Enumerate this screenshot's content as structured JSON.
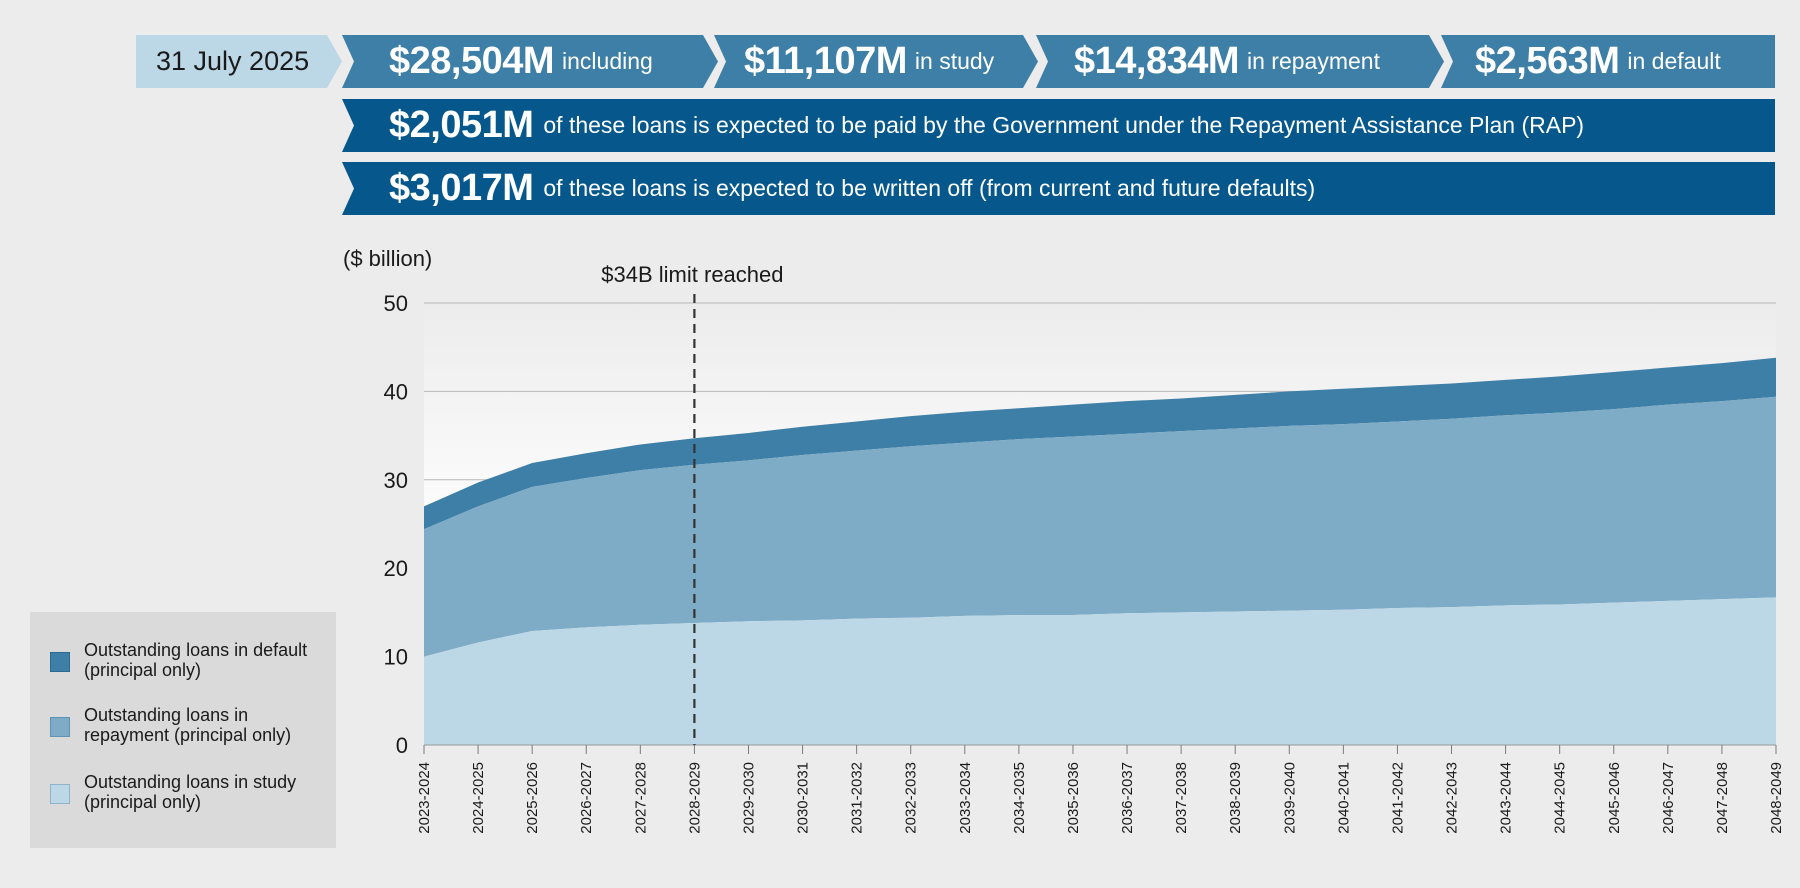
{
  "header": {
    "date": "31 July 2025",
    "total": {
      "amount": "$28,504M",
      "text": "including"
    },
    "study": {
      "amount": "$11,107M",
      "text": "in study"
    },
    "repayment": {
      "amount": "$14,834M",
      "text": "in repayment"
    },
    "default": {
      "amount": "$2,563M",
      "text": "in default"
    },
    "rap": {
      "amount": "$2,051M",
      "text": "of these loans is expected to be paid by the Government under the Repayment Assistance Plan (RAP)"
    },
    "writeoff": {
      "amount": "$3,017M",
      "text": "of these loans is expected to be written off (from current and future defaults)"
    }
  },
  "colors": {
    "banner_mid": "#3d7fa6",
    "banner_dark": "#06588c",
    "default": "#3d7fa6",
    "repayment": "#7eabc6",
    "study": "#bcd7e6"
  },
  "chart_data": {
    "type": "area",
    "stacked": true,
    "ylabel": "($ billion)",
    "ylim": [
      0,
      50
    ],
    "yticks": [
      0,
      10,
      20,
      30,
      40,
      50
    ],
    "grid": true,
    "annotation": {
      "label": "$34B limit reached",
      "category": "2028-2029"
    },
    "categories": [
      "2023-2024",
      "2024-2025",
      "2025-2026",
      "2026-2027",
      "2027-2028",
      "2028-2029",
      "2029-2030",
      "2030-2031",
      "2031-2032",
      "2032-2033",
      "2033-2034",
      "2034-2035",
      "2035-2036",
      "2036-2037",
      "2037-2038",
      "2038-2039",
      "2039-2040",
      "2040-2041",
      "2041-2042",
      "2042-2043",
      "2043-2044",
      "2044-2045",
      "2045-2046",
      "2046-2047",
      "2047-2048",
      "2048-2049"
    ],
    "series": [
      {
        "name": "Outstanding loans in study (principal only)",
        "color": "#bcd7e6",
        "values": [
          10.0,
          11.6,
          12.9,
          13.3,
          13.6,
          13.8,
          14.0,
          14.1,
          14.3,
          14.4,
          14.6,
          14.7,
          14.7,
          14.9,
          15.0,
          15.1,
          15.2,
          15.3,
          15.5,
          15.6,
          15.8,
          15.9,
          16.1,
          16.3,
          16.5,
          16.7
        ]
      },
      {
        "name": "Outstanding loans in repayment (principal only)",
        "color": "#7eabc6",
        "values": [
          14.4,
          15.4,
          16.3,
          16.9,
          17.5,
          17.9,
          18.2,
          18.7,
          19.0,
          19.4,
          19.6,
          19.9,
          20.2,
          20.3,
          20.5,
          20.7,
          20.9,
          21.0,
          21.1,
          21.3,
          21.5,
          21.7,
          21.9,
          22.2,
          22.4,
          22.7
        ]
      },
      {
        "name": "Outstanding loans in default (principal only)",
        "color": "#3d7fa6",
        "values": [
          2.6,
          2.7,
          2.7,
          2.8,
          2.9,
          3.0,
          3.1,
          3.2,
          3.3,
          3.4,
          3.5,
          3.5,
          3.6,
          3.7,
          3.7,
          3.8,
          3.9,
          4.0,
          4.0,
          4.0,
          4.0,
          4.1,
          4.2,
          4.2,
          4.3,
          4.4
        ]
      }
    ]
  }
}
